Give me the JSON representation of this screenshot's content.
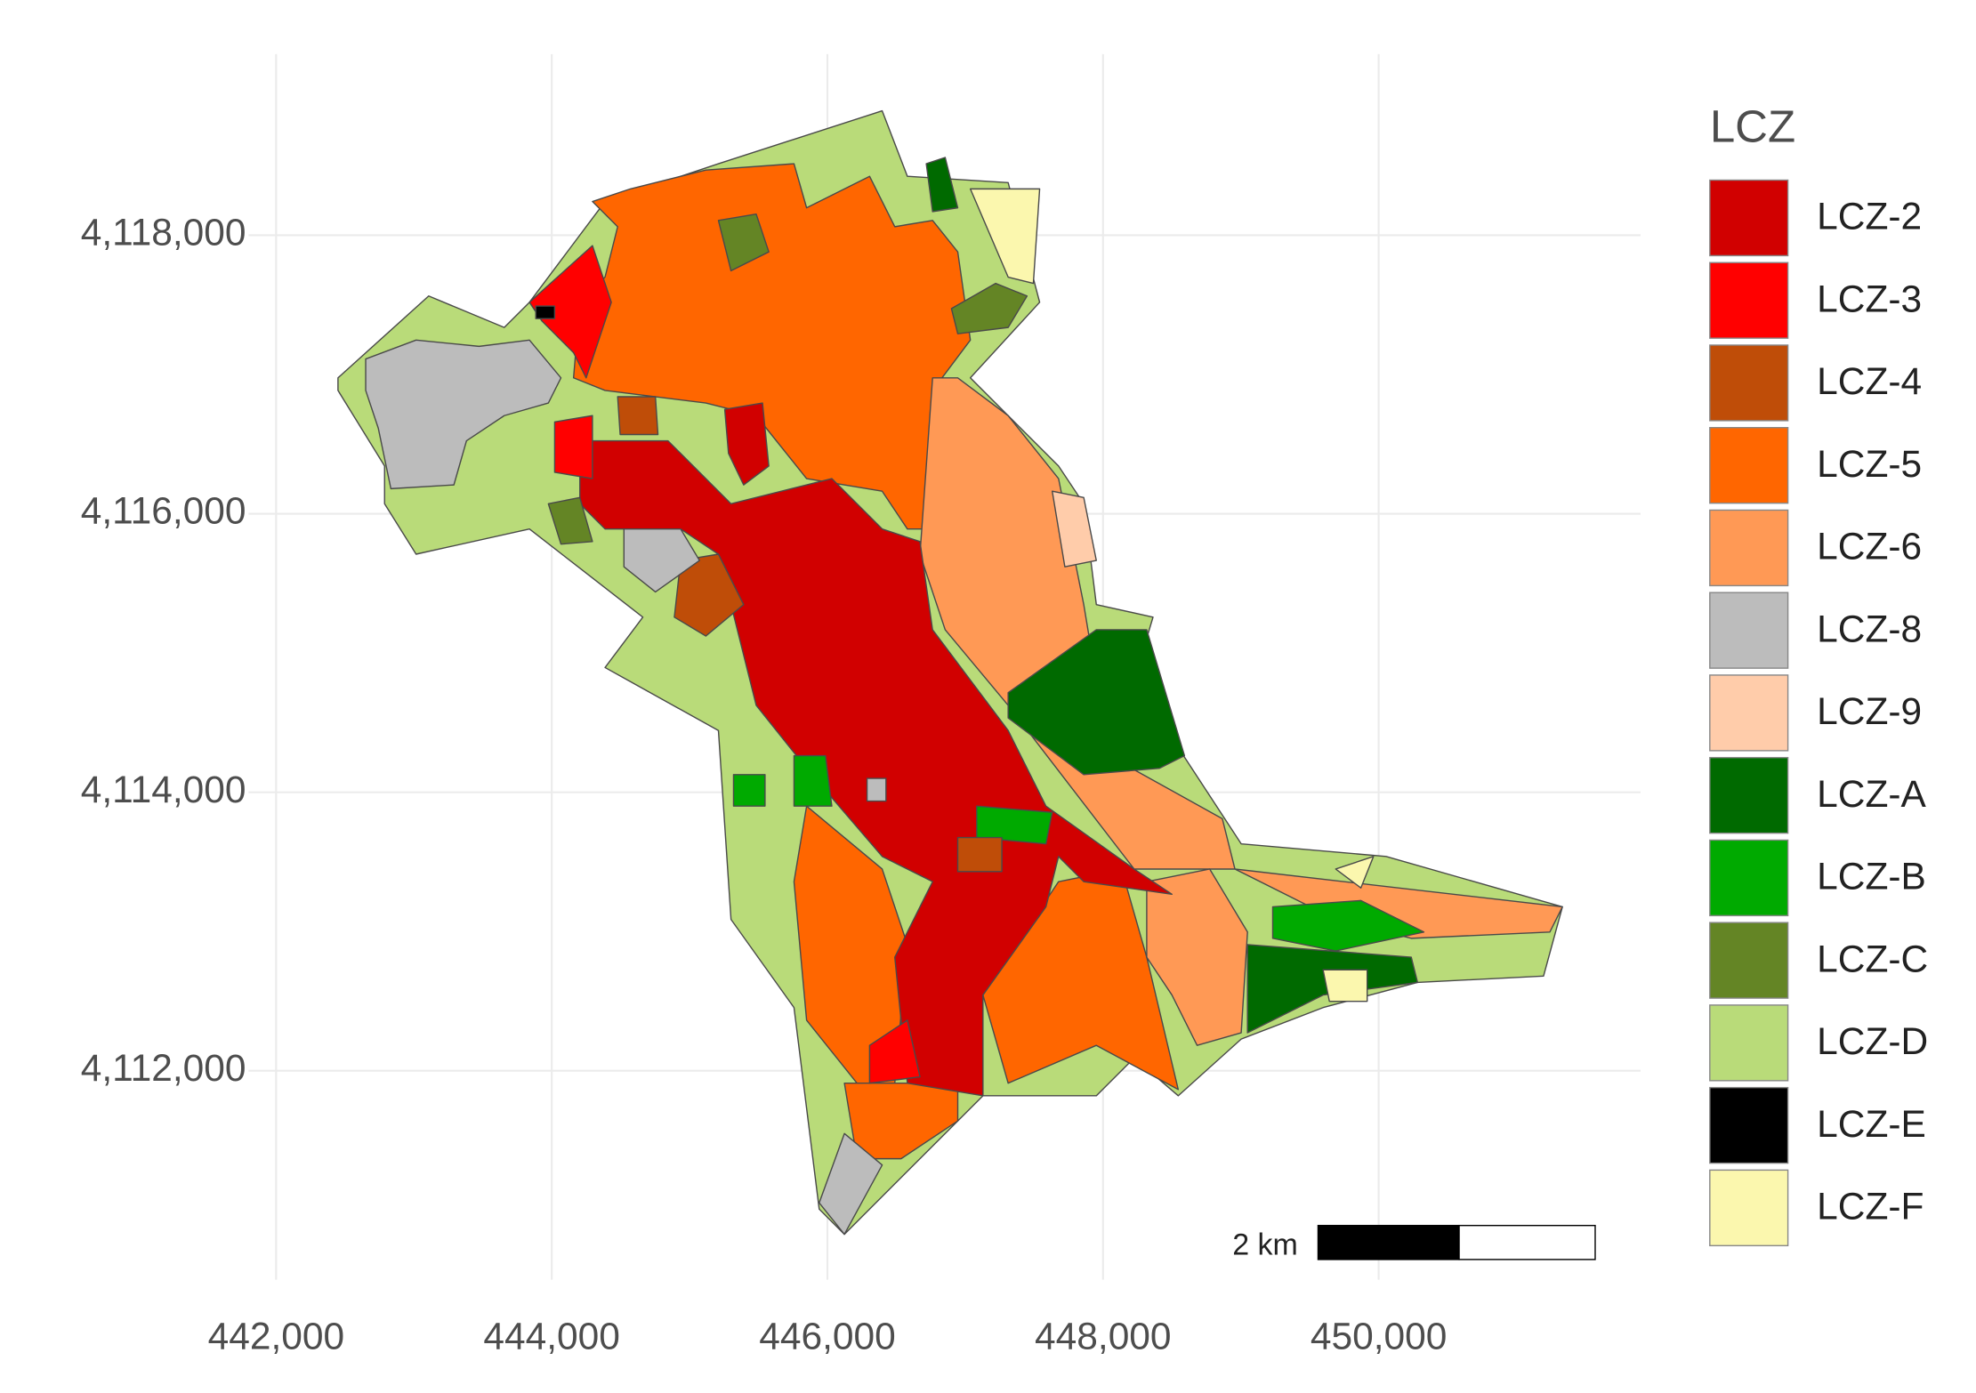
{
  "map": {
    "x_axis": {
      "lim": [
        441800,
        451900
      ],
      "ticks": [
        {
          "value": 442000,
          "label": "442,000"
        },
        {
          "value": 444000,
          "label": "444,000"
        },
        {
          "value": 446000,
          "label": "446,000"
        },
        {
          "value": 448000,
          "label": "448,000"
        },
        {
          "value": 450000,
          "label": "450,000"
        }
      ]
    },
    "y_axis": {
      "lim": [
        4110500,
        4119300
      ],
      "ticks": [
        {
          "value": 4112000,
          "label": "4,112,000"
        },
        {
          "value": 4114000,
          "label": "4,114,000"
        },
        {
          "value": 4116000,
          "label": "4,116,000"
        },
        {
          "value": 4118000,
          "label": "4,118,000"
        }
      ]
    },
    "grid": true,
    "legend": {
      "title": "LCZ",
      "items": [
        {
          "label": "LCZ-2",
          "color": "#d10000"
        },
        {
          "label": "LCZ-3",
          "color": "#ff0000"
        },
        {
          "label": "LCZ-4",
          "color": "#bf4d08"
        },
        {
          "label": "LCZ-5",
          "color": "#ff6600"
        },
        {
          "label": "LCZ-6",
          "color": "#ff9955"
        },
        {
          "label": "LCZ-8",
          "color": "#bcbcbc"
        },
        {
          "label": "LCZ-9",
          "color": "#ffccaa"
        },
        {
          "label": "LCZ-A",
          "color": "#006a00"
        },
        {
          "label": "LCZ-B",
          "color": "#00aa00"
        },
        {
          "label": "LCZ-C",
          "color": "#648525"
        },
        {
          "label": "LCZ-D",
          "color": "#b9db79"
        },
        {
          "label": "LCZ-E",
          "color": "#000000"
        },
        {
          "label": "LCZ-F",
          "color": "#fbf7ae"
        }
      ]
    },
    "scale_bar": {
      "label": "2 km"
    }
  }
}
